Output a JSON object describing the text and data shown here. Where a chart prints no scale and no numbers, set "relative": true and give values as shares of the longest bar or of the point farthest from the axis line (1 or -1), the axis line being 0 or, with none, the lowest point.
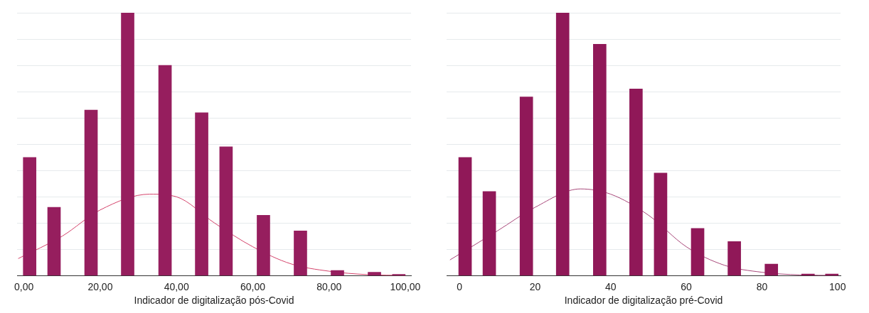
{
  "chart_data": [
    {
      "type": "bar",
      "relative": true,
      "xlabel": "Indicador de digitalização pós-Covid",
      "xlim": [
        -1.8,
        101.5
      ],
      "xticks": [
        {
          "value": 0,
          "label": "0,00"
        },
        {
          "value": 20,
          "label": "20,00"
        },
        {
          "value": 40,
          "label": "40,00"
        },
        {
          "value": 60,
          "label": "60,00"
        },
        {
          "value": 80,
          "label": "80,00"
        },
        {
          "value": 100,
          "label": "100,00"
        }
      ],
      "grid": "y",
      "legend": false,
      "tick_labels": "x",
      "series": [
        {
          "color": "#961e5e",
          "x": [
            1.5,
            7.9,
            17.6,
            27.2,
            37.0,
            46.6,
            53.0,
            62.8,
            72.5,
            82.2,
            91.9,
            98.3
          ],
          "values": [
            0.45,
            0.26,
            0.63,
            1,
            0.8,
            0.62,
            0.49,
            0.23,
            0.17,
            0.02,
            0.013,
            0.005
          ]
        },
        {
          "type": "line",
          "color": "#d4436b",
          "x": [
            -1.5,
            10,
            20,
            33,
            40,
            50,
            60,
            70,
            80,
            90,
            100
          ],
          "values": [
            0.065,
            0.15,
            0.25,
            0.31,
            0.3,
            0.2,
            0.11,
            0.045,
            0.017,
            0.004,
            0.001
          ]
        }
      ]
    },
    {
      "type": "bar",
      "relative": true,
      "xlabel": "Indicador de digitalização pré-Covid",
      "xlim": [
        -3.4,
        100.8
      ],
      "xticks": [
        0,
        20,
        40,
        60,
        80,
        100
      ],
      "grid": "y",
      "legend": false,
      "tick_labels": "x",
      "series": [
        {
          "color": "#901858",
          "x": [
            1.5,
            7.9,
            17.7,
            27.3,
            37.1,
            46.7,
            53.2,
            63.0,
            72.7,
            82.5,
            92.2,
            98.5
          ],
          "values": [
            0.45,
            0.32,
            0.68,
            1,
            0.88,
            0.71,
            0.39,
            0.18,
            0.13,
            0.044,
            0.006,
            0.006
          ]
        },
        {
          "type": "line",
          "color": "#a8487a",
          "x": [
            -2.5,
            10,
            20,
            32,
            40,
            50,
            60,
            70,
            80,
            90,
            100
          ],
          "values": [
            0.06,
            0.17,
            0.26,
            0.33,
            0.31,
            0.23,
            0.11,
            0.04,
            0.013,
            0.003,
            0.001
          ]
        }
      ]
    }
  ]
}
